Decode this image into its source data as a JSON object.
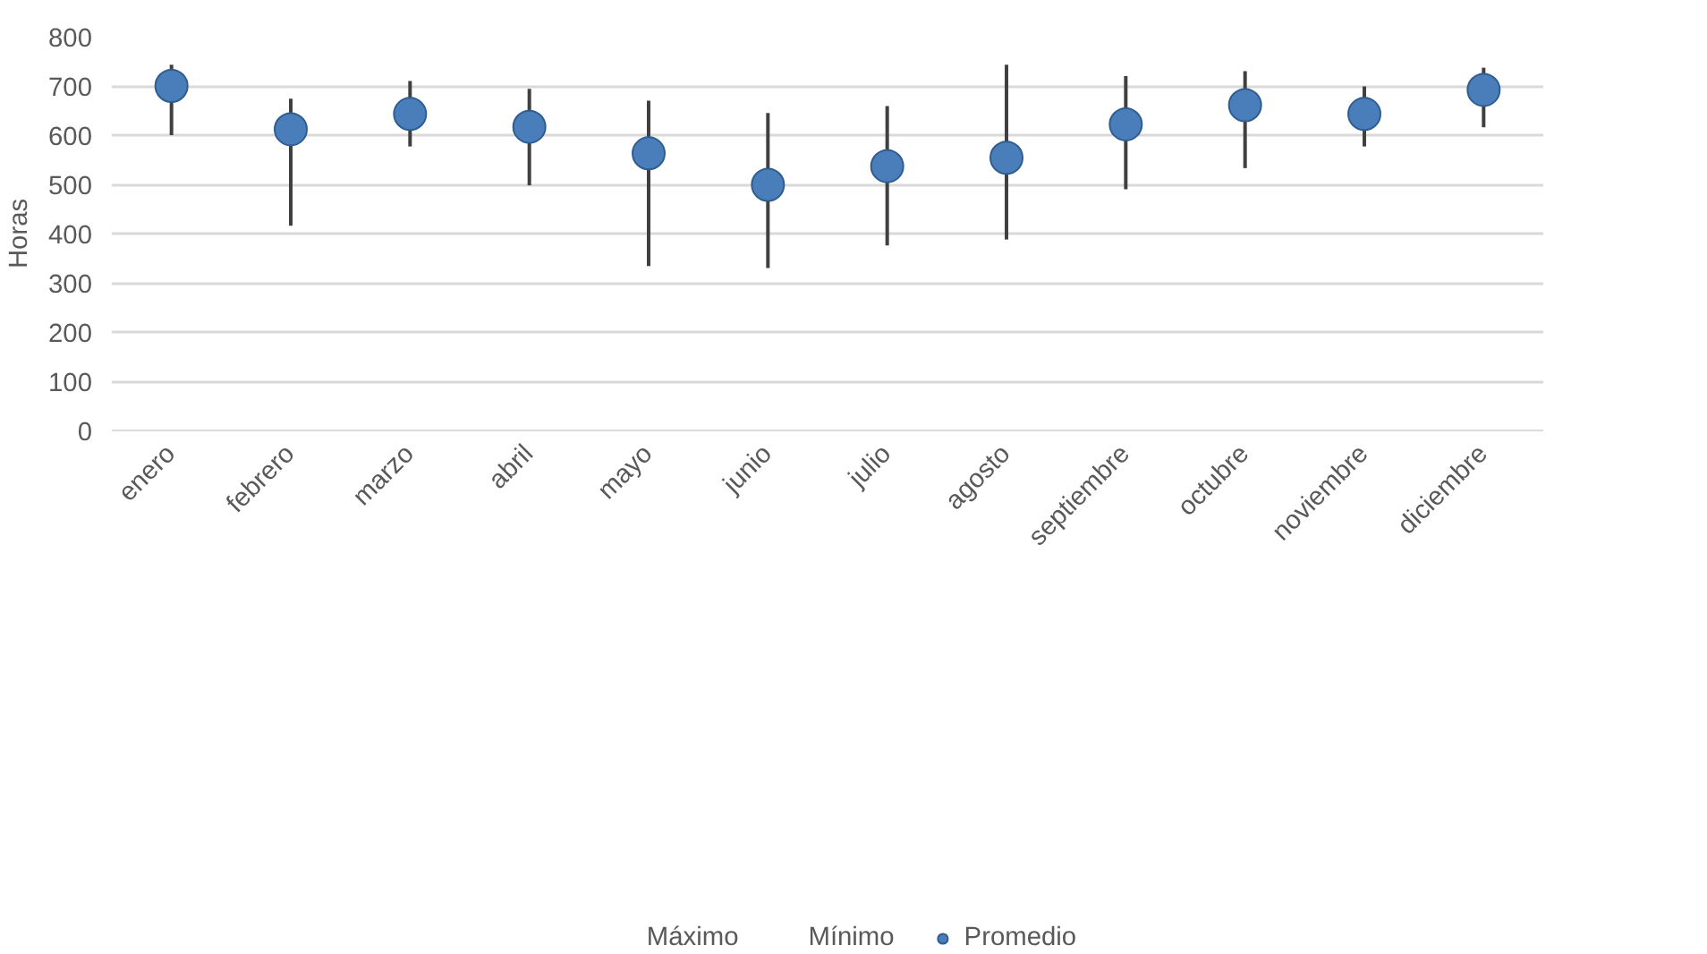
{
  "chart_data": {
    "type": "scatter",
    "ylabel": "Horas",
    "categories": [
      "enero",
      "febrero",
      "marzo",
      "abril",
      "mayo",
      "junio",
      "julio",
      "agosto",
      "septiembre",
      "octubre",
      "noviembre",
      "diciembre"
    ],
    "series": [
      {
        "name": "Promedio",
        "color": "#4a7ebb",
        "values": [
          700,
          612,
          643,
          617,
          563,
          499,
          537,
          554,
          622,
          661,
          643,
          692
        ],
        "errors": [
          [
            600,
            743
          ],
          [
            416,
            674
          ],
          [
            577,
            710
          ],
          [
            498,
            694
          ],
          [
            334,
            670
          ],
          [
            330,
            645
          ],
          [
            376,
            659
          ],
          [
            388,
            743
          ],
          [
            490,
            720
          ],
          [
            533,
            730
          ],
          [
            577,
            699
          ],
          [
            616,
            737
          ]
        ]
      }
    ],
    "annotations": [
      "Máximo",
      "Mínimo"
    ],
    "marker": "circle",
    "ylim": [
      0,
      800
    ],
    "yticks": [
      0,
      100,
      200,
      300,
      400,
      500,
      600,
      700,
      800
    ],
    "grid": "y",
    "legend": "bottom"
  }
}
